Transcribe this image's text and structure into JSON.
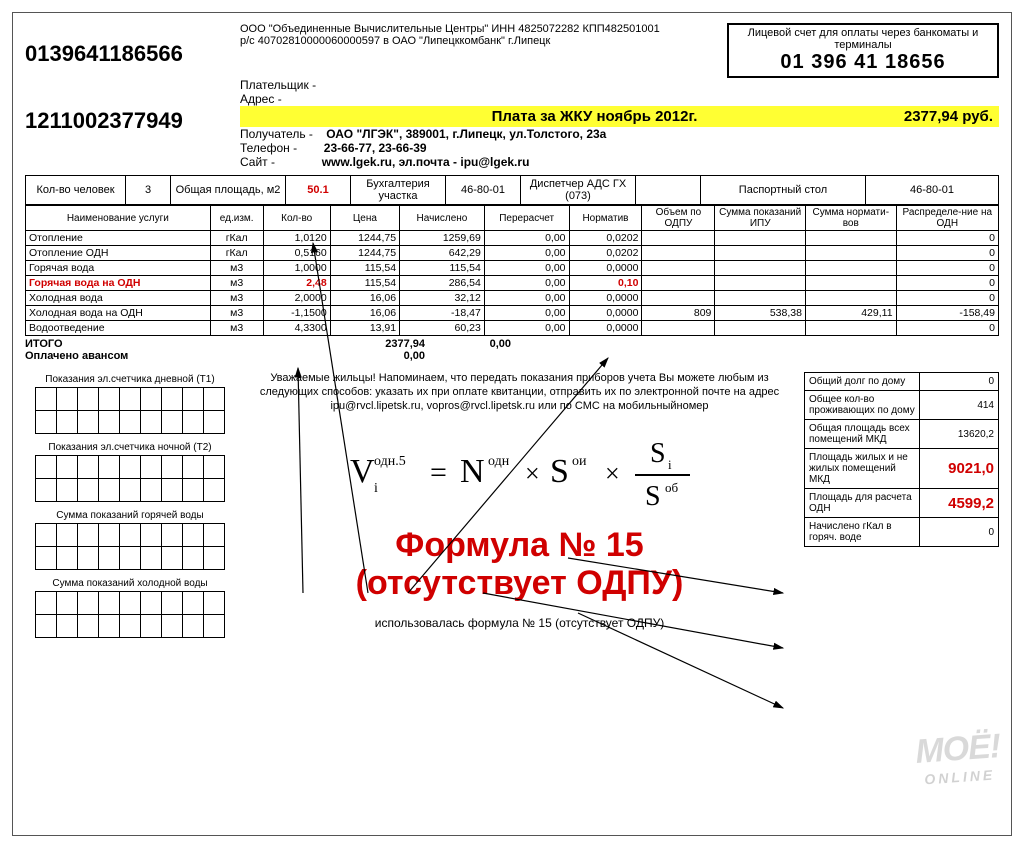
{
  "org": {
    "line1": "ООО \"Объединенные Вычислительные Центры\" ИНН 4825072282 КПП482501001",
    "line2": "р/с 40702810000060000597 в ОАО \"Липецккомбанк\" г.Липецк"
  },
  "barcode1": "0139641186566",
  "barcode2": "1211002377949",
  "account_box": {
    "title": "Лицевой счет для оплаты через банкоматы и терминалы",
    "number": "01 396 41 18656"
  },
  "payer_lines": {
    "payer": "Плательщик -",
    "address": "Адрес -"
  },
  "yellow": {
    "left": "Плата за ЖКУ ноябрь 2012г.",
    "right": "2377,94  руб."
  },
  "recipient": {
    "lab1": "Получатель -",
    "val1": "ОАО \"ЛГЭК\", 389001, г.Липецк, ул.Толстого, 23а",
    "lab2": "Телефон -",
    "val2": "23-66-77, 23-66-39",
    "lab3": "Сайт -",
    "val3": "www.lgek.ru, эл.почта - ipu@lgek.ru"
  },
  "head": {
    "c1": "Кол-во человек",
    "v1": "3",
    "c2": "Общая площадь, м2",
    "v2": "50.1",
    "c3": "Бухгалтерия участка",
    "v3": "46-80-01",
    "c4": "Диспетчер АДС ГХ (073)",
    "v4": "",
    "c5": "Паспортный стол",
    "v5": "46-80-01"
  },
  "cols": [
    "Наименование услуги",
    "ед.изм.",
    "Кол-во",
    "Цена",
    "Начислено",
    "Перерасчет",
    "Норматив",
    "Объем по ОДПУ",
    "Сумма показаний ИПУ",
    "Сумма нормати-вов",
    "Распределе-ние на ОДН"
  ],
  "rows": [
    {
      "n": "Отопление",
      "u": "гКал",
      "k": "1,0120",
      "p": "1244,75",
      "na": "1259,69",
      "pe": "0,00",
      "no": "0,0202",
      "o": "",
      "s1": "",
      "s2": "",
      "r": "0"
    },
    {
      "n": "Отопление ОДН",
      "u": "гКал",
      "k": "0,5160",
      "p": "1244,75",
      "na": "642,29",
      "pe": "0,00",
      "no": "0,0202",
      "o": "",
      "s1": "",
      "s2": "",
      "r": "0"
    },
    {
      "n": "Горячая вода",
      "u": "м3",
      "k": "1,0000",
      "p": "115,54",
      "na": "115,54",
      "pe": "0,00",
      "no": "0,0000",
      "o": "",
      "s1": "",
      "s2": "",
      "r": "0"
    },
    {
      "n": "Горячая вода на ОДН",
      "u": "м3",
      "k": "2,48",
      "p": "115,54",
      "na": "286,54",
      "pe": "0,00",
      "no": "0,10",
      "o": "",
      "s1": "",
      "s2": "",
      "r": "0",
      "red": true
    },
    {
      "n": "Холодная вода",
      "u": "м3",
      "k": "2,0000",
      "p": "16,06",
      "na": "32,12",
      "pe": "0,00",
      "no": "0,0000",
      "o": "",
      "s1": "",
      "s2": "",
      "r": "0"
    },
    {
      "n": "Холодная вода на ОДН",
      "u": "м3",
      "k": "-1,1500",
      "p": "16,06",
      "na": "-18,47",
      "pe": "0,00",
      "no": "0,0000",
      "o": "809",
      "s1": "538,38",
      "s2": "429,11",
      "r": "-158,49"
    },
    {
      "n": "Водоотведение",
      "u": "м3",
      "k": "4,3300",
      "p": "13,91",
      "na": "60,23",
      "pe": "0,00",
      "no": "0,0000",
      "o": "",
      "s1": "",
      "s2": "",
      "r": "0"
    }
  ],
  "totals": {
    "label1": "ИТОГО",
    "val1a": "2377,94",
    "val1b": "0,00",
    "label2": "Оплачено авансом",
    "val2": "0,00"
  },
  "meters": {
    "t1": "Показания эл.счетчика дневной (Т1)",
    "t2": "Показания эл.счетчика ночной (Т2)",
    "t3": "Сумма показаний горячей воды",
    "t4": "Сумма показаний холодной воды"
  },
  "reminder": "Уважаемые жильцы! Напоминаем, что передать показания приборов учета Вы можете любым из следующих способов: указать их при оплате квитанции, отправить их по электронной почте на адрес ipu@rvcl.lipetsk.ru, vopros@rvcl.lipetsk.ru или по СМС на мобильныйномер",
  "formula": {
    "line1": "Формула № 15",
    "line2": "(отсутствует ОДПУ)",
    "sub": "использовалась формула № 15 (отсутствует ОДПУ)",
    "parts": {
      "V": "V",
      "Vsub": "i",
      "Vsup": "одн.5",
      "eq": "=",
      "N": "N",
      "Nsup": "одн",
      "x1": "×",
      "S1": "S",
      "S1sup": "ои",
      "x2": "×",
      "Si": "S",
      "Sisub": "i",
      "Sob": "S",
      "Sobsup": "об"
    }
  },
  "side": [
    {
      "label": "Общий долг по дому",
      "val": "0"
    },
    {
      "label": "Общее кол-во проживающих по дому",
      "val": "414"
    },
    {
      "label": "Общая площадь всех помещений МКД",
      "val": "13620,2"
    },
    {
      "label": "Площадь жилых и не жилых помещений МКД",
      "val": "9021,0",
      "red": true
    },
    {
      "label": "Площадь для расчета ОДН",
      "val": "4599,2",
      "red": true
    },
    {
      "label": "Начислено гКал в горяч. воде",
      "val": "0"
    }
  ],
  "watermark": {
    "big": "МОЁ!",
    "sub": "ONLINE"
  },
  "colors": {
    "red": "#d00000",
    "yellow": "#ffff33",
    "black": "#000000"
  }
}
